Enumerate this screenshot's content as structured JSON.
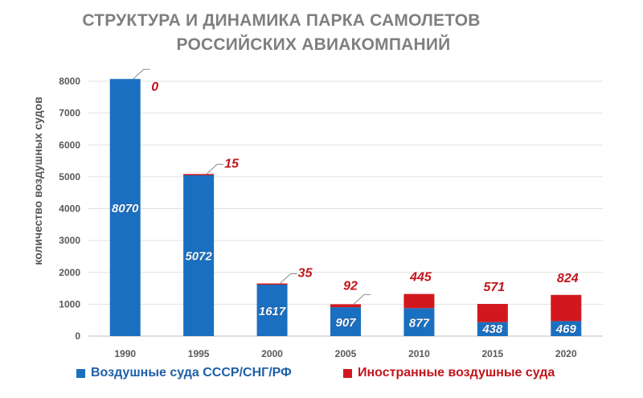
{
  "chart_data": {
    "type": "bar",
    "stacked": true,
    "title": "СТРУКТУРА И ДИНАМИКА ПАРКА САМОЛЕТОВ",
    "subtitle": "РОССИЙСКИХ АВИАКОМПАНИЙ",
    "ylabel": "количество воздушных судов",
    "xlabel": "",
    "ylim": [
      0,
      8000
    ],
    "yticks": [
      "0",
      "1000",
      "2000",
      "3000",
      "4000",
      "5000",
      "6000",
      "7000",
      "8000"
    ],
    "categories": [
      "1990",
      "1995",
      "2000",
      "2005",
      "2010",
      "2015",
      "2020"
    ],
    "series": [
      {
        "name": "Воздушные суда СССР/СНГ/РФ",
        "color": "#1a6fc0",
        "values": [
          8070,
          5072,
          1617,
          907,
          877,
          438,
          469
        ],
        "labels": [
          "8070",
          "5072",
          "1617",
          "907",
          "877",
          "438",
          "469"
        ]
      },
      {
        "name": "Иностранные воздушные суда",
        "color": "#d3171e",
        "values": [
          0,
          15,
          35,
          92,
          445,
          571,
          824
        ],
        "labels": [
          "0",
          "15",
          "35",
          "92",
          "445",
          "571",
          "824"
        ]
      }
    ],
    "grid": true,
    "legend_position": "bottom"
  }
}
